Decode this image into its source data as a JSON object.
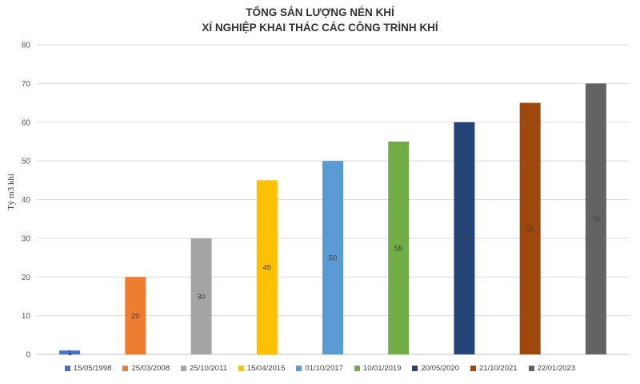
{
  "chart_data": {
    "type": "bar",
    "title": "TỔNG SẢN LƯỢNG NÉN KHÍ",
    "subtitle": "XÍ NGHIỆP KHAI THÁC CÁC CÔNG TRÌNH KHÍ",
    "xlabel": "",
    "ylabel": "Tỷ m3 khí",
    "ylim": [
      0,
      80
    ],
    "yticks": [
      0,
      10,
      20,
      30,
      40,
      50,
      60,
      70,
      80
    ],
    "grid": true,
    "legend_position": "bottom",
    "categories": [
      "15/05/1998",
      "25/03/2008",
      "25/10/2011",
      "15/04/2015",
      "01/10/2017",
      "10/01/2019",
      "20/05/2020",
      "21/10/2021",
      "22/01/2023"
    ],
    "values": [
      1,
      20,
      30,
      45,
      50,
      55,
      60,
      65,
      70
    ],
    "data_labels": [
      "1",
      "20",
      "30",
      "45",
      "50",
      "55",
      "60",
      "65",
      "70"
    ],
    "colors": [
      "#4472C4",
      "#ED7D31",
      "#A5A5A5",
      "#FFC000",
      "#5B9BD5",
      "#70AD47",
      "#264478",
      "#9E480E",
      "#636363"
    ]
  }
}
